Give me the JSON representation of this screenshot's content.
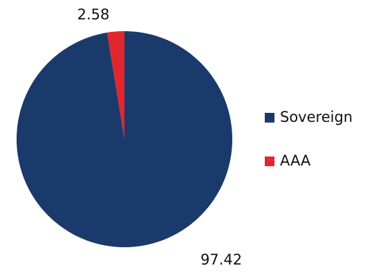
{
  "chart_data": {
    "type": "pie",
    "categories": [
      "Sovereign",
      "AAA"
    ],
    "values": [
      97.42,
      2.58
    ],
    "colors": [
      "#193a6b",
      "#e1262e"
    ],
    "legend": "right"
  }
}
